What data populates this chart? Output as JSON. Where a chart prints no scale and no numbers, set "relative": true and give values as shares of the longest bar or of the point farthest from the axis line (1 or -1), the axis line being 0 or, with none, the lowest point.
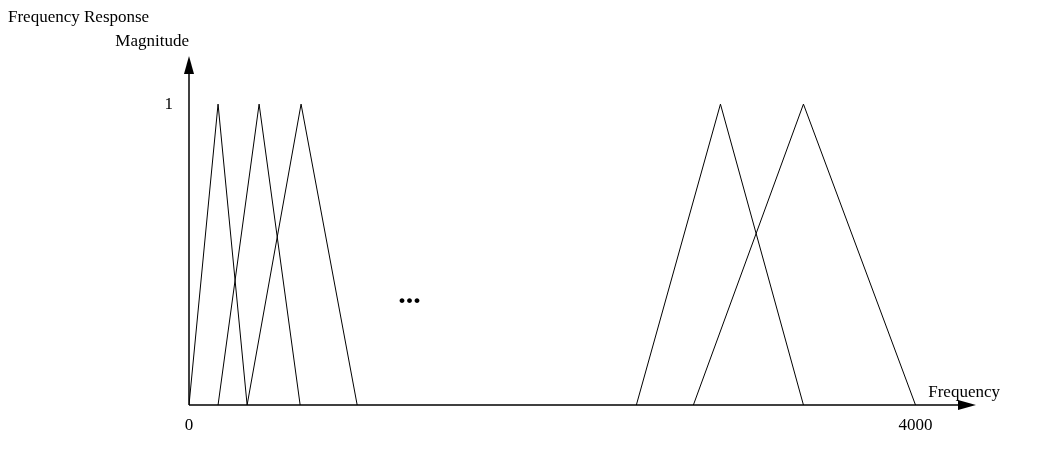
{
  "chart_data": {
    "type": "line",
    "xlabel": "Frequency",
    "ylabel": "Frequency Response Magnitude",
    "xlim": [
      0,
      4300
    ],
    "xticks": [
      0,
      4000
    ],
    "relative": true,
    "grid": false,
    "legend": false,
    "marker": "none",
    "line_style": "solid",
    "annotations": [
      "1",
      "..."
    ],
    "series": [
      {
        "color": "#000000",
        "x": [
          0,
          160,
          320
        ],
        "values": [
          0,
          1,
          0
        ]
      },
      {
        "color": "#000000",
        "x": [
          160,
          386,
          612
        ],
        "values": [
          0,
          1,
          0
        ]
      },
      {
        "color": "#000000",
        "x": [
          320,
          617,
          926
        ],
        "values": [
          0,
          1,
          0
        ]
      },
      {
        "color": "#000000",
        "x": [
          2463,
          2926,
          3383
        ],
        "values": [
          0,
          1,
          0
        ]
      },
      {
        "color": "#000000",
        "x": [
          2777,
          3383,
          4000
        ],
        "values": [
          0,
          1,
          0
        ]
      }
    ]
  }
}
